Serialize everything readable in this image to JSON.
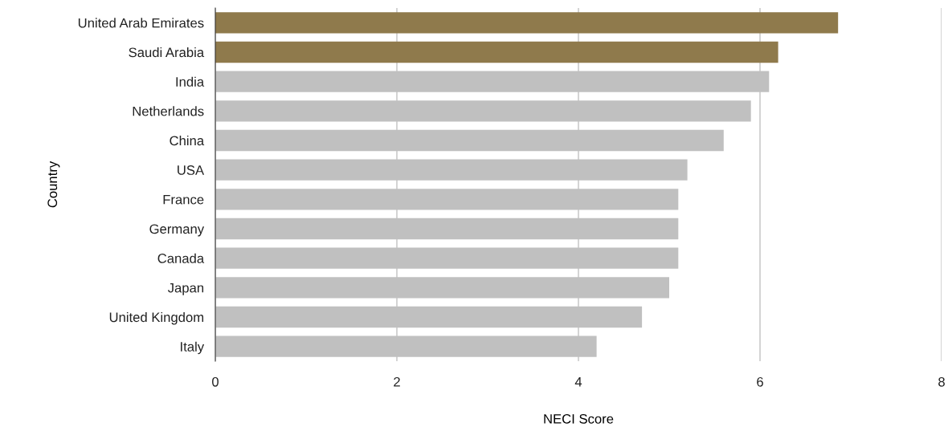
{
  "chart_data": {
    "type": "bar",
    "orientation": "horizontal",
    "categories": [
      "United Arab Emirates",
      "Saudi Arabia",
      "India",
      "Netherlands",
      "China",
      "USA",
      "France",
      "Germany",
      "Canada",
      "Japan",
      "United Kingdom",
      "Italy"
    ],
    "values": [
      6.86,
      6.2,
      6.1,
      5.9,
      5.6,
      5.2,
      5.1,
      5.1,
      5.1,
      5.0,
      4.7,
      4.2
    ],
    "colors": [
      "#8f7a4c",
      "#8f7a4c",
      "#c0c0c0",
      "#c0c0c0",
      "#c0c0c0",
      "#c0c0c0",
      "#c0c0c0",
      "#c0c0c0",
      "#c0c0c0",
      "#c0c0c0",
      "#c0c0c0",
      "#c0c0c0"
    ],
    "xlabel": "NECI Score",
    "ylabel": "Country",
    "xlim": [
      0,
      8
    ],
    "xticks": [
      0,
      2,
      4,
      6,
      8
    ],
    "grid": "x"
  }
}
